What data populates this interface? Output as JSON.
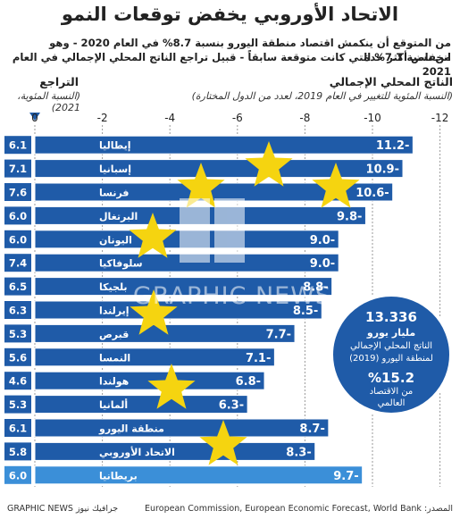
{
  "title": "الاتحاد الأوروبي يخفض توقعات النمو",
  "subtitle_line1": "من المتوقع أن ينكمش اقتصاد منطقة اليورو بنسبة 8.7% في العام 2020 - وهو انخفاض أكثر حدة",
  "subtitle_line2": "من نسبة 7.7% التي كانت متوقعة سابقاً - قبيل تراجع الناتج المحلي الإجمالي في العام 2021",
  "left_header": "التراجع",
  "left_subheader": "(النسبة المئوية، 2021)",
  "right_header": "الناتج المحلي الإجمالي",
  "right_subheader": "(النسبة المئوية للتغيير في العام 2019، لعدد من الدول المختارة)",
  "watermark": "GRAPHIC NEWS",
  "info": {
    "amount": "13.336",
    "unit": "مليار يورو",
    "desc1": "الناتج المحلي الإجمالي",
    "desc2": "لمنطقة اليورو (2019)",
    "percent": "%15.2",
    "share1": "من الاقتصاد",
    "share2": "العالمي"
  },
  "footer_source": "المصدر: European Commission, European Economic Forecast, World Bank",
  "footer_credit": "GRAPHIC NEWS جرافيك نيوز",
  "colors": {
    "bar": "#1f5ba8",
    "bar_highlight": "#3b8fd8",
    "label_box": "#1f5ba8",
    "star": "#f5d410"
  },
  "chart_data": {
    "type": "bar",
    "orientation": "horizontal",
    "axis_ticks": [
      "0",
      "-2",
      "-4",
      "-6",
      "-8",
      "-10",
      "-12"
    ],
    "xlim": [
      0,
      -12
    ],
    "grid": true,
    "categories": [
      "إيطاليا",
      "إسبانيا",
      "فرنسا",
      "البرتغال",
      "اليونان",
      "سلوفاكيا",
      "بلجيكا",
      "إيرلندا",
      "قبرص",
      "النمسا",
      "هولندا",
      "ألمانيا",
      "منطقة اليورو",
      "الاتحاد الأوروبي",
      "بريطانيا"
    ],
    "values": [
      -11.2,
      -10.9,
      -10.6,
      -9.8,
      -9.0,
      -9.0,
      -8.8,
      -8.5,
      -7.7,
      -7.1,
      -6.8,
      -6.3,
      -8.7,
      -8.3,
      -9.7
    ],
    "value_labels": [
      "11.2-",
      "10.9-",
      "10.6-",
      "9.8-",
      "9.0-",
      "9.0-",
      "8.8-",
      "8.5-",
      "7.7-",
      "7.1-",
      "6.8-",
      "6.3-",
      "8.7-",
      "8.3-",
      "9.7-"
    ],
    "recovery_2021": [
      "6.1",
      "7.1",
      "7.6",
      "6.0",
      "6.0",
      "7.4",
      "6.5",
      "6.3",
      "5.3",
      "5.6",
      "4.6",
      "5.3",
      "6.1",
      "5.8",
      "6.0"
    ],
    "highlight_index": 14
  }
}
